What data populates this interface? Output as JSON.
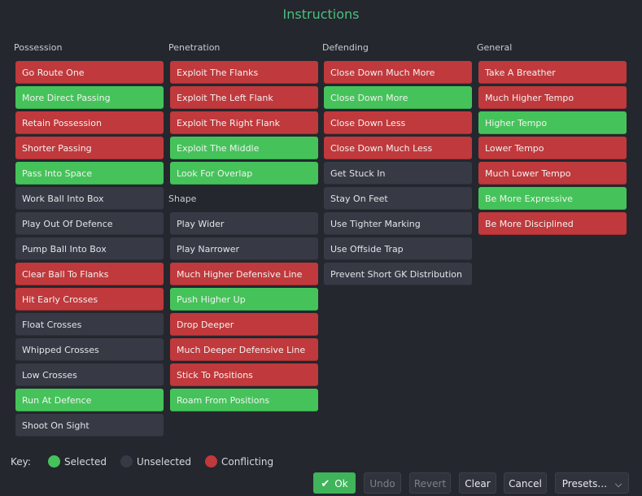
{
  "title": "Instructions",
  "columns": {
    "possession": {
      "heading": "Possession",
      "items": [
        {
          "label": "Go Route One",
          "state": "con"
        },
        {
          "label": "More Direct Passing",
          "state": "sel"
        },
        {
          "label": "Retain Possession",
          "state": "con"
        },
        {
          "label": "Shorter Passing",
          "state": "con"
        },
        {
          "label": "Pass Into Space",
          "state": "sel"
        },
        {
          "label": "Work Ball Into Box",
          "state": "uns"
        },
        {
          "label": "Play Out Of Defence",
          "state": "uns"
        },
        {
          "label": "Pump Ball Into Box",
          "state": "uns"
        },
        {
          "label": "Clear Ball To Flanks",
          "state": "con"
        },
        {
          "label": "Hit Early Crosses",
          "state": "con"
        },
        {
          "label": "Float Crosses",
          "state": "uns"
        },
        {
          "label": "Whipped Crosses",
          "state": "uns"
        },
        {
          "label": "Low Crosses",
          "state": "uns"
        },
        {
          "label": "Run At Defence",
          "state": "sel"
        },
        {
          "label": "Shoot On Sight",
          "state": "uns"
        }
      ]
    },
    "penetration": {
      "heading": "Penetration",
      "items": [
        {
          "label": "Exploit The Flanks",
          "state": "con"
        },
        {
          "label": "Exploit The Left Flank",
          "state": "con"
        },
        {
          "label": "Exploit The Right Flank",
          "state": "con"
        },
        {
          "label": "Exploit The Middle",
          "state": "sel"
        },
        {
          "label": "Look For Overlap",
          "state": "sel"
        }
      ]
    },
    "shape": {
      "heading": "Shape",
      "items": [
        {
          "label": "Play Wider",
          "state": "uns"
        },
        {
          "label": "Play Narrower",
          "state": "uns"
        },
        {
          "label": "Much Higher Defensive Line",
          "state": "con"
        },
        {
          "label": "Push Higher Up",
          "state": "sel"
        },
        {
          "label": "Drop Deeper",
          "state": "con"
        },
        {
          "label": "Much Deeper Defensive Line",
          "state": "con"
        },
        {
          "label": "Stick To Positions",
          "state": "con"
        },
        {
          "label": "Roam From Positions",
          "state": "sel"
        }
      ]
    },
    "defending": {
      "heading": "Defending",
      "items": [
        {
          "label": "Close Down Much More",
          "state": "con"
        },
        {
          "label": "Close Down More",
          "state": "sel"
        },
        {
          "label": "Close Down Less",
          "state": "con"
        },
        {
          "label": "Close Down Much Less",
          "state": "con"
        },
        {
          "label": "Get Stuck In",
          "state": "uns"
        },
        {
          "label": "Stay On Feet",
          "state": "uns"
        },
        {
          "label": "Use Tighter Marking",
          "state": "uns"
        },
        {
          "label": "Use Offside Trap",
          "state": "uns"
        },
        {
          "label": "Prevent Short GK Distribution",
          "state": "uns"
        }
      ]
    },
    "general": {
      "heading": "General",
      "items": [
        {
          "label": "Take A Breather",
          "state": "con"
        },
        {
          "label": "Much Higher Tempo",
          "state": "con"
        },
        {
          "label": "Higher Tempo",
          "state": "sel"
        },
        {
          "label": "Lower Tempo",
          "state": "con"
        },
        {
          "label": "Much Lower Tempo",
          "state": "con"
        },
        {
          "label": "Be More Expressive",
          "state": "sel"
        },
        {
          "label": "Be More Disciplined",
          "state": "con"
        }
      ]
    }
  },
  "key": {
    "label": "Key:",
    "selected": "Selected",
    "unselected": "Unselected",
    "conflicting": "Conflicting"
  },
  "colors": {
    "selected": "#45c35a",
    "unselected": "#373a44",
    "conflicting": "#c0393c",
    "title": "#4dbf7c"
  },
  "footer": {
    "ok_icon": "check-icon",
    "ok": "Ok",
    "undo": "Undo",
    "revert": "Revert",
    "clear": "Clear",
    "cancel": "Cancel",
    "presets": "Presets...",
    "presets_icon": "chevron-down-icon"
  }
}
